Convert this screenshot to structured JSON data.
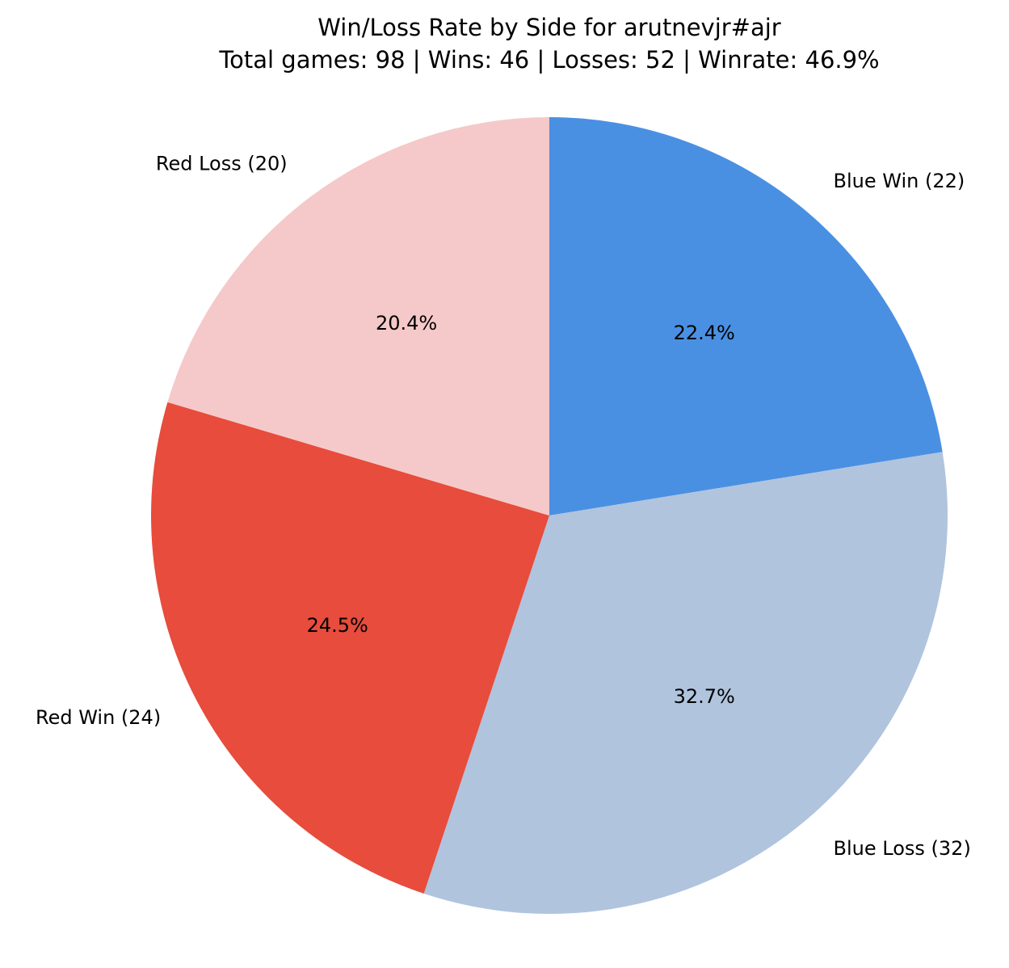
{
  "chart_data": {
    "type": "pie",
    "title": "Win/Loss Rate by Side for arutnevjr#ajr",
    "subtitle": "Total games: 98 | Wins: 46 | Losses: 52 | Winrate: 46.9%",
    "slices": [
      {
        "label": "Blue Win (22)",
        "value": 22,
        "percent_label": "22.4%",
        "color": "#4a90e2"
      },
      {
        "label": "Blue Loss (32)",
        "value": 32,
        "percent_label": "32.7%",
        "color": "#b0c4de"
      },
      {
        "label": "Red Win (24)",
        "value": 24,
        "percent_label": "24.5%",
        "color": "#e74c3c"
      },
      {
        "label": "Red Loss (20)",
        "value": 20,
        "percent_label": "20.4%",
        "color": "#f5c9c9"
      }
    ],
    "start_angle_deg": 90,
    "direction": "clockwise",
    "legend": "none"
  }
}
